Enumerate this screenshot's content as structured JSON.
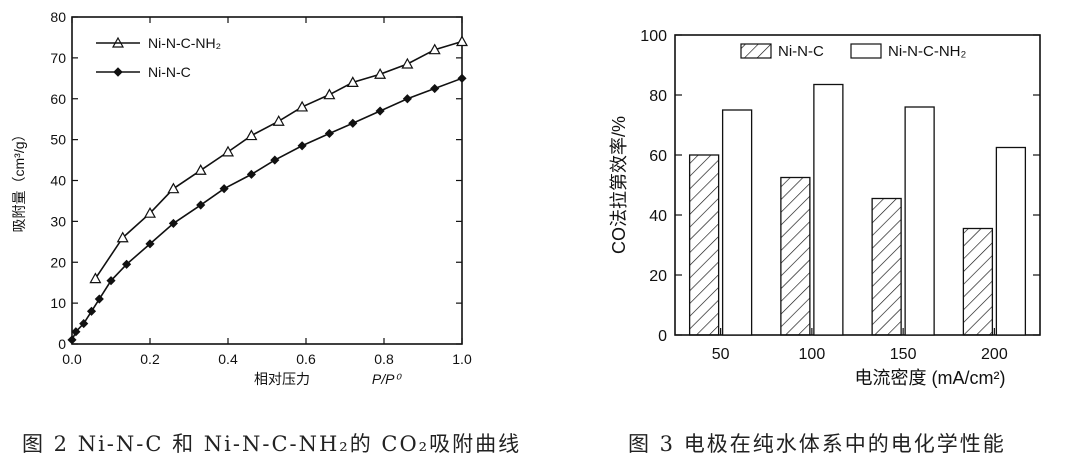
{
  "chart_data": [
    {
      "type": "line",
      "title": "",
      "xlabel": "相对压力",
      "xlabel_var": "P/P⁰",
      "ylabel": "吸附量（cm³/g）",
      "xlim": [
        0.0,
        1.0
      ],
      "ylim": [
        0,
        80
      ],
      "xticks": [
        "0.0",
        "0.2",
        "0.4",
        "0.6",
        "0.8",
        "1.0"
      ],
      "yticks": [
        "0",
        "10",
        "20",
        "30",
        "40",
        "50",
        "60",
        "70",
        "80"
      ],
      "legend_position": "top-left",
      "series": [
        {
          "name": "Ni-N-C-NH₂",
          "marker": "triangle",
          "x": [
            0.06,
            0.13,
            0.2,
            0.26,
            0.33,
            0.4,
            0.46,
            0.53,
            0.59,
            0.66,
            0.72,
            0.79,
            0.86,
            0.93,
            1.0
          ],
          "y": [
            16,
            26,
            32,
            38,
            42.5,
            47,
            51,
            54.5,
            58,
            61,
            64,
            66,
            68.5,
            72,
            74
          ]
        },
        {
          "name": "Ni-N-C",
          "marker": "diamond",
          "x": [
            0.0,
            0.01,
            0.03,
            0.05,
            0.07,
            0.1,
            0.14,
            0.2,
            0.26,
            0.33,
            0.39,
            0.46,
            0.52,
            0.59,
            0.66,
            0.72,
            0.79,
            0.86,
            0.93,
            1.0
          ],
          "y": [
            1,
            3,
            5,
            8,
            11,
            15.5,
            19.5,
            24.5,
            29.5,
            34,
            38,
            41.5,
            45,
            48.5,
            51.5,
            54,
            57,
            60,
            62.5,
            65
          ]
        }
      ]
    },
    {
      "type": "bar",
      "title": "",
      "xlabel": "电流密度 (mA/cm²)",
      "ylabel": "CO法拉第效率/%",
      "ylim": [
        0,
        100
      ],
      "yticks": [
        "0",
        "20",
        "40",
        "60",
        "80",
        "100"
      ],
      "categories": [
        "50",
        "100",
        "150",
        "200"
      ],
      "legend_position": "top",
      "series": [
        {
          "name": "Ni-N-C",
          "pattern": "hatched",
          "values": [
            60,
            52.5,
            45.5,
            35.5
          ]
        },
        {
          "name": "Ni-N-C-NH₂",
          "pattern": "open",
          "values": [
            75,
            83.5,
            76,
            62.5
          ]
        }
      ]
    }
  ],
  "captions": {
    "fig2": "图 2  Ni-N-C 和 Ni-N-C-NH₂的 CO₂吸附曲线",
    "fig3": "图 3  电极在纯水体系中的电化学性能"
  }
}
